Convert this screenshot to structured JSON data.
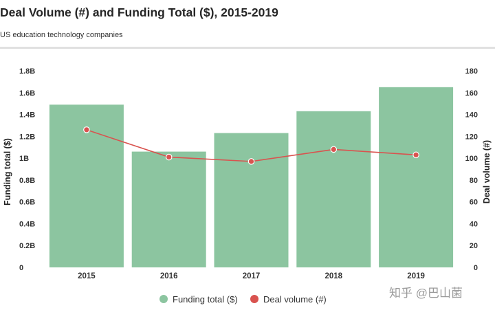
{
  "chart_data": {
    "type": "bar",
    "title": "Deal Volume (#) and Funding Total ($), 2015-2019",
    "subtitle": "US education technology companies",
    "categories": [
      "2015",
      "2016",
      "2017",
      "2018",
      "2019"
    ],
    "series": [
      {
        "name": "Funding total ($)",
        "type": "bar",
        "axis": "left",
        "color": "#8cc5a0",
        "values": [
          1.49,
          1.06,
          1.23,
          1.43,
          1.65
        ]
      },
      {
        "name": "Deal volume (#)",
        "type": "line",
        "axis": "right",
        "color": "#d9534f",
        "values": [
          126,
          101,
          97,
          108,
          103
        ]
      }
    ],
    "ylabel": "Funding total ($)",
    "y2label": "Deal volume (#)",
    "ylim": [
      0,
      1.8
    ],
    "y2lim": [
      0,
      180
    ],
    "yticks": [
      "0",
      "0.2B",
      "0.4B",
      "0.6B",
      "0.8B",
      "1B",
      "1.2B",
      "1.4B",
      "1.6B",
      "1.8B"
    ],
    "y2ticks": [
      "0",
      "20",
      "40",
      "60",
      "80",
      "100",
      "120",
      "140",
      "160",
      "180"
    ],
    "legend": "bottom",
    "grid": false
  },
  "watermark": "知乎 @巴山菌"
}
